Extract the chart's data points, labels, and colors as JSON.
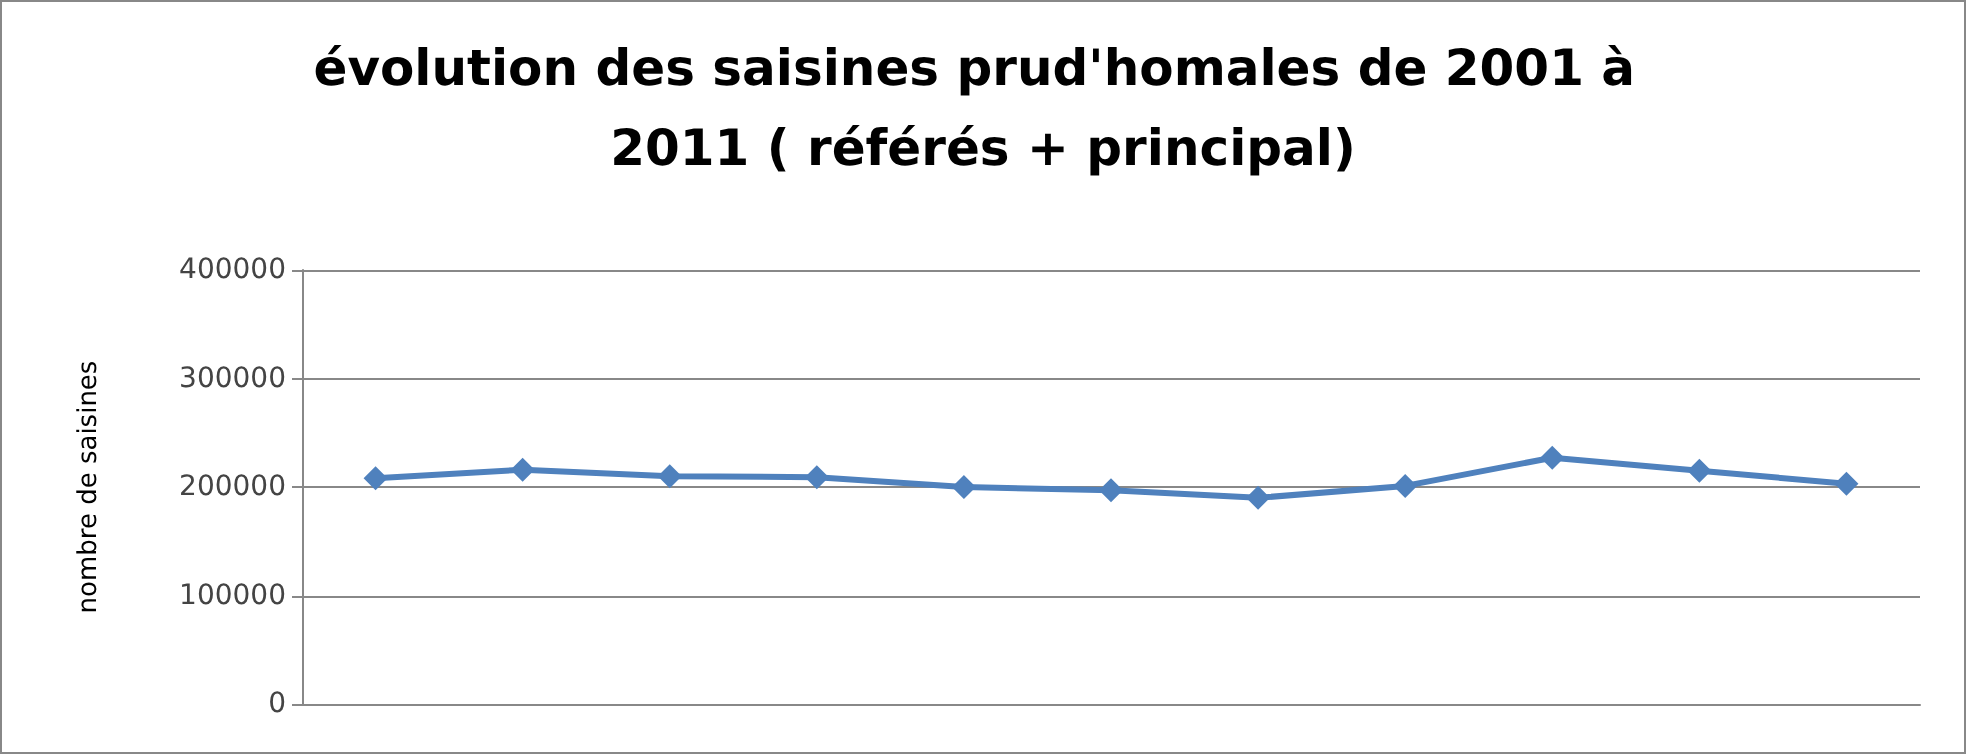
{
  "chart_data": {
    "type": "line",
    "title": "évolution des saisines prud'homales de 2001 à 2011 ( référés + principal)",
    "ylabel": "nombre de saisines",
    "categories": [
      null,
      null,
      null,
      null,
      null,
      null,
      null,
      null,
      null,
      null,
      null
    ],
    "series": [
      {
        "color": "#4f81bd",
        "values": [
          208000,
          216000,
          210000,
          209000,
          200000,
          197000,
          190000,
          201000,
          227000,
          215000,
          203000
        ]
      }
    ],
    "ylim": [
      0,
      400000
    ],
    "yticks": [
      0,
      100000,
      200000,
      300000,
      400000
    ],
    "grid": "y",
    "marker": "diamond",
    "line_style": "solid"
  }
}
